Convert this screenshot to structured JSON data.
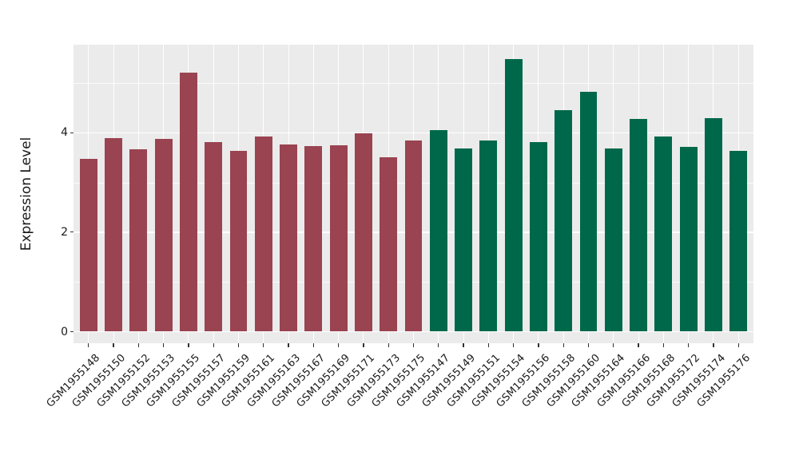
{
  "chart_data": {
    "type": "bar",
    "title": "",
    "xlabel": "",
    "ylabel": "Expression Level",
    "y_ticks": [
      0,
      2,
      4
    ],
    "y_minor_gridlines": [
      1,
      3,
      5
    ],
    "ylim": [
      -0.27,
      5.77
    ],
    "grid": true,
    "legend_position": "none",
    "categories": [
      "GSM1955148",
      "GSM1955150",
      "GSM1955152",
      "GSM1955153",
      "GSM1955155",
      "GSM1955157",
      "GSM1955159",
      "GSM1955161",
      "GSM1955163",
      "GSM1955167",
      "GSM1955169",
      "GSM1955171",
      "GSM1955173",
      "GSM1955175",
      "GSM1955147",
      "GSM1955149",
      "GSM1955151",
      "GSM1955154",
      "GSM1955156",
      "GSM1955158",
      "GSM1955160",
      "GSM1955164",
      "GSM1955166",
      "GSM1955168",
      "GSM1955172",
      "GSM1955174",
      "GSM1955176"
    ],
    "values": [
      3.47,
      3.89,
      3.66,
      3.88,
      5.21,
      3.81,
      3.63,
      3.92,
      3.76,
      3.73,
      3.74,
      3.99,
      3.51,
      3.84,
      4.06,
      3.69,
      3.84,
      5.48,
      3.82,
      4.46,
      4.82,
      3.68,
      4.28,
      3.92,
      3.71,
      4.29,
      3.63
    ],
    "groups": [
      "group1",
      "group1",
      "group1",
      "group1",
      "group1",
      "group1",
      "group1",
      "group1",
      "group1",
      "group1",
      "group1",
      "group1",
      "group1",
      "group1",
      "group2",
      "group2",
      "group2",
      "group2",
      "group2",
      "group2",
      "group2",
      "group2",
      "group2",
      "group2",
      "group2",
      "group2",
      "group2"
    ],
    "group_colors": {
      "group1": "#9A4351",
      "group2": "#00684A"
    }
  },
  "style": {
    "figure_background": "#FFFFFF",
    "panel_background": "#EBEBEB",
    "gridline_major_color": "#FFFFFF",
    "gridline_minor_color": "#FFFFFF",
    "axis_text_color": "#1A1A1A",
    "tick_mark_color": "#333333"
  }
}
